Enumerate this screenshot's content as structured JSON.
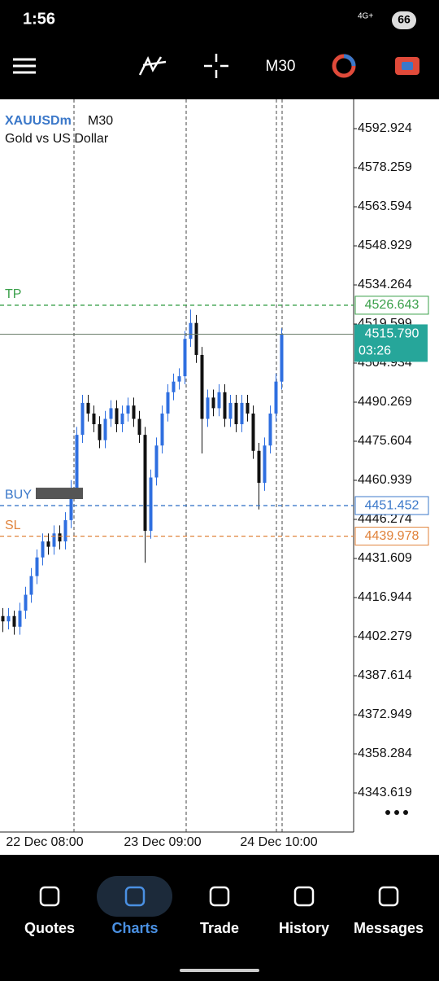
{
  "status_bar": {
    "time": "1:56",
    "network": "4G+",
    "battery": "66"
  },
  "toolbar": {
    "timeframe": "M30"
  },
  "chart_data": {
    "type": "candlestick",
    "symbol": "XAUUSDm",
    "timeframe": "M30",
    "description": "Gold vs US Dollar",
    "bull_color": "#2f6fe0",
    "bear_color": "#111111",
    "ylim": [
      4328.95,
      4603.92
    ],
    "yticks": [
      {
        "value": 4592.924,
        "label": "4592.924"
      },
      {
        "value": 4578.259,
        "label": "4578.259"
      },
      {
        "value": 4563.594,
        "label": "4563.594"
      },
      {
        "value": 4548.929,
        "label": "4548.929"
      },
      {
        "value": 4534.264,
        "label": "4534.264"
      },
      {
        "value": 4519.599,
        "label": "4519.599"
      },
      {
        "value": 4504.934,
        "label": "4504.934"
      },
      {
        "value": 4490.269,
        "label": "4490.269"
      },
      {
        "value": 4475.604,
        "label": "4475.604"
      },
      {
        "value": 4460.939,
        "label": "4460.939"
      },
      {
        "value": 4446.274,
        "label": "4446.274"
      },
      {
        "value": 4431.609,
        "label": "4431.609"
      },
      {
        "value": 4416.944,
        "label": "4416.944"
      },
      {
        "value": 4402.279,
        "label": "4402.279"
      },
      {
        "value": 4387.614,
        "label": "4387.614"
      },
      {
        "value": 4372.949,
        "label": "4372.949"
      },
      {
        "value": 4358.284,
        "label": "4358.284"
      },
      {
        "value": 4343.619,
        "label": "4343.619"
      }
    ],
    "x_labels": [
      "22 Dec 08:00",
      "23 Dec 09:00",
      "24 Dec 10:00"
    ],
    "levels": [
      {
        "name": "TP",
        "value": 4526.643,
        "label": "4526.643",
        "color": "#3aa04a"
      },
      {
        "name": "BUY",
        "value": 4451.452,
        "label": "4451.452",
        "color": "#3b78c9"
      },
      {
        "name": "SL",
        "value": 4439.978,
        "label": "4439.978",
        "color": "#e0823a"
      }
    ],
    "current": {
      "value": 4515.79,
      "label": "4515.790",
      "timer": "03:26",
      "color": "#26a69a"
    },
    "ohlc": [
      [
        4410,
        4413,
        4404,
        4408
      ],
      [
        4408,
        4413,
        4405,
        4410
      ],
      [
        4410,
        4412,
        4403,
        4406
      ],
      [
        4406,
        4415,
        4403,
        4412
      ],
      [
        4412,
        4421,
        4409,
        4418
      ],
      [
        4418,
        4428,
        4415,
        4425
      ],
      [
        4425,
        4435,
        4422,
        4432
      ],
      [
        4432,
        4441,
        4429,
        4438
      ],
      [
        4438,
        4441,
        4433,
        4436
      ],
      [
        4436,
        4444,
        4433,
        4441
      ],
      [
        4441,
        4444,
        4435,
        4438
      ],
      [
        4438,
        4449,
        4435,
        4446
      ],
      [
        4446,
        4461,
        4443,
        4458
      ],
      [
        4458,
        4481,
        4455,
        4478
      ],
      [
        4478,
        4493,
        4475,
        4490
      ],
      [
        4490,
        4493,
        4483,
        4486
      ],
      [
        4486,
        4489,
        4479,
        4482
      ],
      [
        4482,
        4485,
        4473,
        4476
      ],
      [
        4476,
        4487,
        4473,
        4484
      ],
      [
        4484,
        4491,
        4481,
        4488
      ],
      [
        4488,
        4491,
        4479,
        4482
      ],
      [
        4482,
        4489,
        4479,
        4486
      ],
      [
        4486,
        4492,
        4483,
        4489
      ],
      [
        4489,
        4492,
        4481,
        4484
      ],
      [
        4484,
        4487,
        4475,
        4478
      ],
      [
        4478,
        4481,
        4430,
        4442
      ],
      [
        4442,
        4465,
        4439,
        4462
      ],
      [
        4462,
        4477,
        4459,
        4474
      ],
      [
        4474,
        4489,
        4471,
        4486
      ],
      [
        4486,
        4497,
        4483,
        4494
      ],
      [
        4494,
        4501,
        4491,
        4498
      ],
      [
        4498,
        4503,
        4495,
        4500
      ],
      [
        4500,
        4517,
        4497,
        4514
      ],
      [
        4514,
        4525,
        4511,
        4520
      ],
      [
        4520,
        4523,
        4505,
        4508
      ],
      [
        4508,
        4511,
        4471,
        4484
      ],
      [
        4484,
        4495,
        4481,
        4492
      ],
      [
        4492,
        4495,
        4485,
        4488
      ],
      [
        4488,
        4497,
        4485,
        4494
      ],
      [
        4494,
        4497,
        4481,
        4484
      ],
      [
        4484,
        4493,
        4481,
        4490
      ],
      [
        4490,
        4493,
        4479,
        4482
      ],
      [
        4482,
        4493,
        4479,
        4490
      ],
      [
        4490,
        4493,
        4483,
        4486
      ],
      [
        4486,
        4489,
        4469,
        4472
      ],
      [
        4472,
        4475,
        4450,
        4460
      ],
      [
        4460,
        4477,
        4457,
        4474
      ],
      [
        4474,
        4489,
        4471,
        4486
      ],
      [
        4486,
        4501,
        4483,
        4498
      ],
      [
        4498,
        4518,
        4495,
        4515.79
      ]
    ]
  },
  "bottom_nav": [
    "Quotes",
    "Charts",
    "Trade",
    "History",
    "Messages"
  ]
}
